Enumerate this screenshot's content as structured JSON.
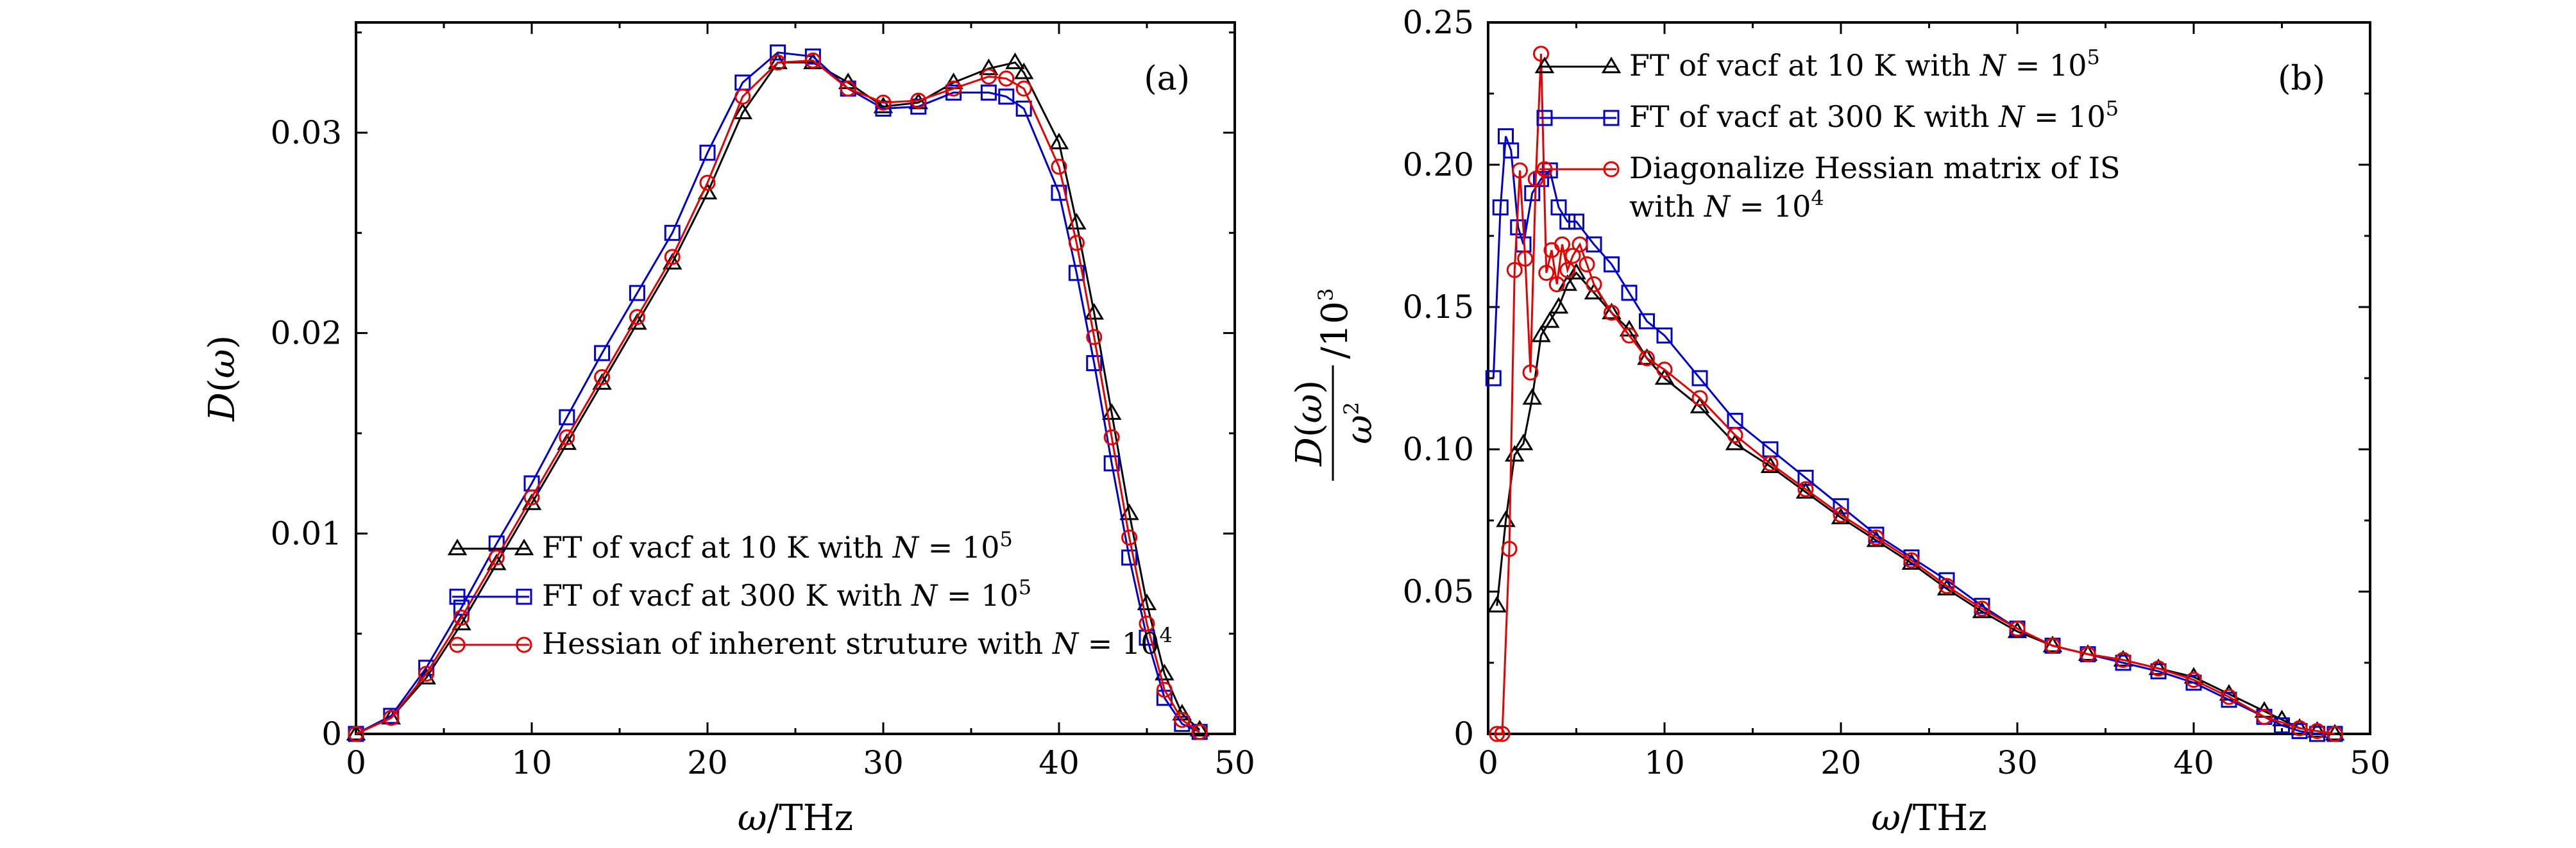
{
  "chart_data": [
    {
      "type": "line",
      "panel_label": "(a)",
      "xlabel": "ω/THz",
      "ylabel": "D(ω)",
      "xlim": [
        0,
        50
      ],
      "ylim": [
        0,
        0.0355
      ],
      "xticks": [
        "0",
        "10",
        "20",
        "30",
        "40",
        "50"
      ],
      "yticks": [
        "0",
        "0.01",
        "0.02",
        "0.03"
      ],
      "legend_position": "bottom-left",
      "series": [
        {
          "name": "FT of vacf at 10 K with N = 10^5",
          "color": "#000000",
          "marker": "triangle",
          "x": [
            0,
            2,
            4,
            6,
            8,
            10,
            12,
            14,
            16,
            18,
            20,
            22,
            24,
            26,
            28,
            30,
            32,
            34,
            36,
            37.5,
            38,
            40,
            41,
            42,
            43,
            44,
            45,
            46,
            47,
            48
          ],
          "y": [
            0,
            0.0008,
            0.0028,
            0.0055,
            0.0085,
            0.0115,
            0.0145,
            0.0175,
            0.0205,
            0.0235,
            0.027,
            0.031,
            0.0335,
            0.0335,
            0.0325,
            0.0313,
            0.0315,
            0.0325,
            0.0332,
            0.0335,
            0.033,
            0.0295,
            0.0255,
            0.021,
            0.016,
            0.011,
            0.0065,
            0.003,
            0.001,
            0.0002
          ]
        },
        {
          "name": "FT of vacf at 300 K with N = 10^5",
          "color": "#0000cc",
          "marker": "square",
          "x": [
            0,
            2,
            4,
            6,
            8,
            10,
            12,
            14,
            16,
            18,
            20,
            22,
            24,
            26,
            28,
            30,
            32,
            34,
            36,
            37,
            38,
            40,
            41,
            42,
            43,
            44,
            45,
            46,
            47,
            48
          ],
          "y": [
            0,
            0.0009,
            0.0033,
            0.0063,
            0.0095,
            0.0125,
            0.0158,
            0.019,
            0.022,
            0.025,
            0.029,
            0.0325,
            0.034,
            0.0338,
            0.0322,
            0.0312,
            0.0313,
            0.032,
            0.032,
            0.0318,
            0.0312,
            0.027,
            0.023,
            0.0185,
            0.0135,
            0.0088,
            0.0048,
            0.0018,
            0.0005,
            0.0001
          ]
        },
        {
          "name": "Hessian of inherent struture with N = 10^4",
          "color": "#e60000",
          "marker": "circle",
          "x": [
            0,
            2,
            4,
            6,
            8,
            10,
            12,
            14,
            16,
            18,
            20,
            22,
            24,
            26,
            28,
            30,
            32,
            34,
            36,
            37,
            38,
            40,
            41,
            42,
            43,
            44,
            45,
            46,
            47,
            48
          ],
          "y": [
            0,
            0.0008,
            0.003,
            0.0058,
            0.0088,
            0.0118,
            0.0148,
            0.0178,
            0.0208,
            0.0238,
            0.0275,
            0.0318,
            0.0335,
            0.0336,
            0.0322,
            0.0315,
            0.0316,
            0.0322,
            0.0328,
            0.0327,
            0.0322,
            0.0283,
            0.0245,
            0.0198,
            0.0148,
            0.0098,
            0.0055,
            0.0022,
            0.0007,
            0.0001
          ]
        }
      ]
    },
    {
      "type": "line",
      "panel_label": "(b)",
      "xlabel": "ω/THz",
      "ylabel": "D(ω)/ω² /10³",
      "xlim": [
        0,
        50
      ],
      "ylim": [
        0,
        0.25
      ],
      "xticks": [
        "0",
        "10",
        "20",
        "30",
        "40",
        "50"
      ],
      "yticks": [
        "0",
        "0.05",
        "0.10",
        "0.15",
        "0.20",
        "0.25"
      ],
      "legend_position": "top-left",
      "series": [
        {
          "name": "FT of vacf at 10 K with N = 10^5",
          "color": "#000000",
          "marker": "triangle",
          "x": [
            0.5,
            1,
            1.5,
            2,
            2.5,
            3,
            3.5,
            4,
            4.5,
            5,
            6,
            7,
            8,
            9,
            10,
            12,
            14,
            16,
            18,
            20,
            22,
            24,
            26,
            28,
            30,
            32,
            34,
            36,
            38,
            40,
            42,
            44,
            45,
            46,
            47,
            48
          ],
          "y": [
            0.045,
            0.075,
            0.098,
            0.102,
            0.118,
            0.14,
            0.145,
            0.15,
            0.158,
            0.162,
            0.155,
            0.148,
            0.142,
            0.132,
            0.125,
            0.115,
            0.102,
            0.094,
            0.085,
            0.076,
            0.068,
            0.06,
            0.051,
            0.043,
            0.036,
            0.031,
            0.028,
            0.026,
            0.023,
            0.02,
            0.014,
            0.008,
            0.005,
            0.002,
            0.001,
            0.0
          ]
        },
        {
          "name": "FT of vacf at 300 K with N = 10^5",
          "color": "#0000cc",
          "marker": "square",
          "x": [
            0.3,
            0.7,
            1,
            1.3,
            1.7,
            2,
            2.5,
            3,
            3.5,
            4,
            4.5,
            5,
            6,
            7,
            8,
            9,
            10,
            12,
            14,
            16,
            18,
            20,
            22,
            24,
            26,
            28,
            30,
            32,
            34,
            36,
            38,
            40,
            42,
            44,
            45,
            46,
            47,
            48
          ],
          "y": [
            0.125,
            0.185,
            0.21,
            0.205,
            0.178,
            0.172,
            0.19,
            0.195,
            0.198,
            0.185,
            0.18,
            0.18,
            0.172,
            0.165,
            0.155,
            0.145,
            0.14,
            0.125,
            0.11,
            0.1,
            0.09,
            0.08,
            0.07,
            0.062,
            0.054,
            0.045,
            0.037,
            0.031,
            0.028,
            0.025,
            0.022,
            0.018,
            0.012,
            0.006,
            0.003,
            0.001,
            0.0,
            0.0
          ]
        },
        {
          "name": "Diagonalize Hessian matrix of IS with N = 10^4",
          "color": "#e60000",
          "marker": "circle",
          "x": [
            0.5,
            0.8,
            1.2,
            1.5,
            1.8,
            2.1,
            2.4,
            2.7,
            3,
            3.3,
            3.6,
            3.9,
            4.2,
            4.5,
            4.8,
            5.2,
            5.6,
            6,
            7,
            8,
            9,
            10,
            12,
            14,
            16,
            18,
            20,
            22,
            24,
            26,
            28,
            30,
            32,
            34,
            36,
            38,
            40,
            42,
            44,
            46,
            47,
            48
          ],
          "y": [
            0.0,
            0.0,
            0.065,
            0.163,
            0.198,
            0.167,
            0.127,
            0.195,
            0.239,
            0.162,
            0.17,
            0.158,
            0.172,
            0.163,
            0.168,
            0.172,
            0.165,
            0.158,
            0.148,
            0.14,
            0.132,
            0.128,
            0.118,
            0.105,
            0.095,
            0.086,
            0.077,
            0.069,
            0.061,
            0.052,
            0.044,
            0.037,
            0.031,
            0.028,
            0.026,
            0.023,
            0.019,
            0.013,
            0.006,
            0.002,
            0.001,
            0.0
          ]
        }
      ]
    }
  ]
}
